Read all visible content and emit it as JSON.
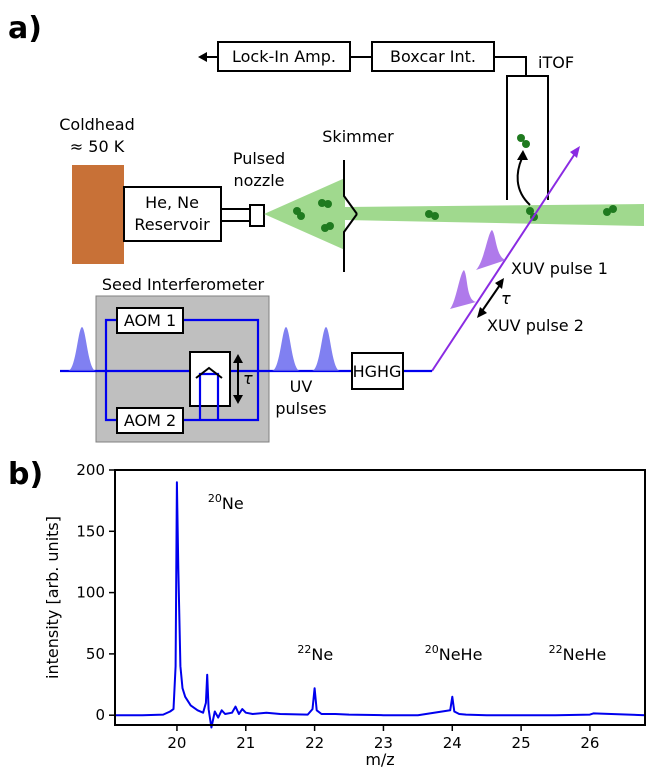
{
  "panel_a": {
    "panel_label": "a)",
    "lockin": "Lock-In Amp.",
    "boxcar": "Boxcar Int.",
    "itof": "iTOF",
    "coldhead": "Coldhead",
    "coldhead_temp": "≈ 50 K",
    "reservoir_1": "He, Ne",
    "reservoir_2": "Reservoir",
    "nozzle_1": "Pulsed",
    "nozzle_2": "nozzle",
    "skimmer": "Skimmer",
    "seed_interferometer": "Seed Interferometer",
    "aom1": "AOM 1",
    "aom2": "AOM 2",
    "tau": "τ",
    "uv_1": "UV",
    "uv_2": "pulses",
    "hghg": "HGHG",
    "xuv1": "XUV pulse 1",
    "xuv2": "XUV pulse 2",
    "colors": {
      "coldhead": "#c87137",
      "jet": "#8fd27a",
      "atoms": "#1f7a1f",
      "beam": "#0000ee",
      "xuv_beam": "#8a2be2",
      "interferometer_box": "#bfbfbf"
    }
  },
  "panel_b": {
    "panel_label": "b)"
  },
  "chart_data": {
    "type": "line",
    "xlabel": "m/z",
    "ylabel": "intensity [arb. units]",
    "xlim": [
      19.1,
      26.8
    ],
    "ylim": [
      -8,
      200
    ],
    "xticks": [
      20,
      21,
      22,
      23,
      24,
      25,
      26
    ],
    "yticks": [
      0,
      50,
      100,
      150,
      200
    ],
    "series_color": "#0000ee",
    "annotations": [
      {
        "text": "Ne",
        "sup": "20",
        "x": 20.45,
        "y": 168
      },
      {
        "text": "Ne",
        "sup": "22",
        "x": 21.75,
        "y": 45
      },
      {
        "text": "NeHe",
        "sup": "20",
        "x": 23.6,
        "y": 45
      },
      {
        "text": "NeHe",
        "sup": "22",
        "x": 25.4,
        "y": 45
      }
    ],
    "x": [
      19.1,
      19.5,
      19.8,
      19.9,
      19.95,
      19.98,
      20.0,
      20.02,
      20.05,
      20.08,
      20.12,
      20.2,
      20.3,
      20.38,
      20.42,
      20.44,
      20.46,
      20.5,
      20.55,
      20.6,
      20.65,
      20.7,
      20.8,
      20.85,
      20.9,
      20.95,
      21.0,
      21.1,
      21.3,
      21.5,
      21.9,
      21.97,
      22.0,
      22.03,
      22.1,
      22.3,
      22.5,
      23.0,
      23.5,
      23.97,
      24.0,
      24.03,
      24.1,
      24.2,
      24.5,
      25.0,
      25.5,
      26.0,
      26.05,
      26.8
    ],
    "y": [
      0,
      0,
      0.5,
      3,
      5,
      40,
      190,
      120,
      40,
      22,
      15,
      8,
      4,
      2,
      10,
      33,
      5,
      -10,
      3,
      -2,
      4,
      1,
      2,
      7,
      1,
      5,
      2,
      1,
      2,
      1,
      0.5,
      5,
      22,
      4,
      1,
      1,
      0.5,
      0,
      0,
      4,
      15,
      3,
      1,
      0.5,
      0,
      0,
      0,
      0.5,
      1.5,
      0
    ]
  }
}
